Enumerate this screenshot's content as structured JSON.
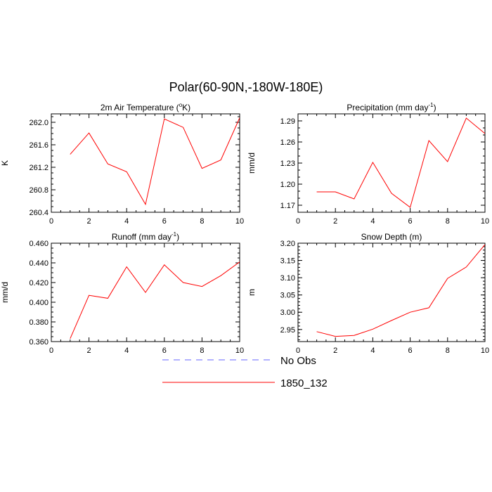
{
  "figure_title": "Polar(60-90N,-180W-180E)",
  "legend": {
    "entries": [
      {
        "label": "No Obs",
        "color": "#6666ff",
        "dashed": true
      },
      {
        "label": "1850_132",
        "color": "#ff0000",
        "dashed": false
      }
    ]
  },
  "chart_data": [
    {
      "type": "line",
      "title": "2m Air Temperature (°K)",
      "title_parts": [
        "2m Air Temperature (",
        "o",
        "K)"
      ],
      "ylabel": "K",
      "xlabel": "",
      "xlim": [
        0,
        10
      ],
      "ylim": [
        260.4,
        262.15
      ],
      "xticks": [
        0,
        2,
        4,
        6,
        8,
        10
      ],
      "yticks": [
        260.4,
        260.8,
        261.2,
        261.6,
        262.0
      ],
      "ytick_labels": [
        "260.4",
        "260.8",
        "261.2",
        "261.6",
        "262.0"
      ],
      "yminor_step": 0.1,
      "grid": false,
      "series": [
        {
          "name": "1850_132",
          "color": "#ff0000",
          "x": [
            1,
            2,
            3,
            4,
            5,
            6,
            7,
            8,
            9,
            10
          ],
          "values": [
            261.43,
            261.81,
            261.26,
            261.12,
            260.54,
            262.06,
            261.91,
            261.18,
            261.33,
            262.08
          ]
        }
      ]
    },
    {
      "type": "line",
      "title": "Precipitation (mm day-1)",
      "title_parts": [
        "Precipitation (mm day",
        "-1",
        ")"
      ],
      "ylabel": "mm/d",
      "xlabel": "",
      "xlim": [
        0,
        10
      ],
      "ylim": [
        1.16,
        1.3
      ],
      "xticks": [
        0,
        2,
        4,
        6,
        8,
        10
      ],
      "yticks": [
        1.17,
        1.2,
        1.23,
        1.26,
        1.29
      ],
      "ytick_labels": [
        "1.17",
        "1.20",
        "1.23",
        "1.26",
        "1.29"
      ],
      "yminor_step": 0.01,
      "grid": false,
      "series": [
        {
          "name": "1850_132",
          "color": "#ff0000",
          "x": [
            1,
            2,
            3,
            4,
            5,
            6,
            7,
            8,
            9,
            10
          ],
          "values": [
            1.189,
            1.189,
            1.179,
            1.231,
            1.187,
            1.167,
            1.262,
            1.232,
            1.294,
            1.272
          ]
        }
      ]
    },
    {
      "type": "line",
      "title": "Runoff (mm day-1)",
      "title_parts": [
        "Runoff (mm day",
        "-1",
        ")"
      ],
      "ylabel": "mm/d",
      "xlabel": "",
      "xlim": [
        0,
        10
      ],
      "ylim": [
        0.36,
        0.46
      ],
      "xticks": [
        0,
        2,
        4,
        6,
        8,
        10
      ],
      "yticks": [
        0.36,
        0.38,
        0.4,
        0.42,
        0.44,
        0.46
      ],
      "ytick_labels": [
        "0.360",
        "0.380",
        "0.400",
        "0.420",
        "0.440",
        "0.460"
      ],
      "yminor_step": 0.005,
      "grid": false,
      "series": [
        {
          "name": "1850_132",
          "color": "#ff0000",
          "x": [
            1,
            2,
            3,
            4,
            5,
            6,
            7,
            8,
            9,
            10
          ],
          "values": [
            0.363,
            0.407,
            0.404,
            0.436,
            0.41,
            0.438,
            0.42,
            0.416,
            0.427,
            0.441
          ]
        }
      ]
    },
    {
      "type": "line",
      "title": "Snow Depth (m)",
      "title_parts": [
        "Snow Depth (m)"
      ],
      "ylabel": "m",
      "xlabel": "",
      "xlim": [
        0,
        10
      ],
      "ylim": [
        2.915,
        3.2
      ],
      "xticks": [
        0,
        2,
        4,
        6,
        8,
        10
      ],
      "yticks": [
        2.95,
        3.0,
        3.05,
        3.1,
        3.15,
        3.2
      ],
      "ytick_labels": [
        "2.95",
        "3.00",
        "3.05",
        "3.10",
        "3.15",
        "3.20"
      ],
      "yminor_step": 0.01,
      "grid": false,
      "series": [
        {
          "name": "1850_132",
          "color": "#ff0000",
          "x": [
            1,
            2,
            3,
            4,
            5,
            6,
            7,
            8,
            9,
            10
          ],
          "values": [
            2.944,
            2.93,
            2.933,
            2.951,
            2.976,
            3.0,
            3.013,
            3.098,
            3.131,
            3.196
          ]
        }
      ]
    }
  ]
}
